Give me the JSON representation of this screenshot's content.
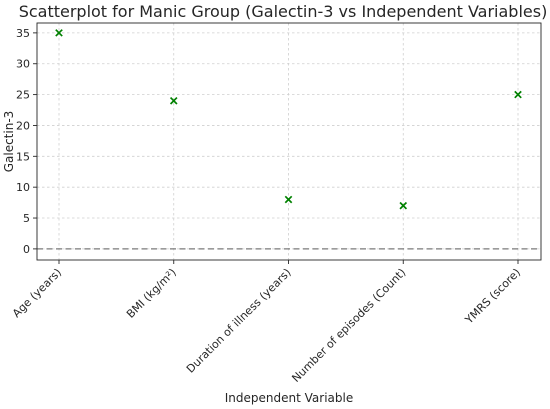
{
  "chart_data": {
    "type": "scatter",
    "title": "Scatterplot for Manic Group (Galectin-3 vs Independent Variables)",
    "xlabel": "Independent Variable",
    "ylabel": "Galectin-3",
    "categories": [
      "Age (years)",
      "BMI (kg/m²)",
      "Duration of illness (years)",
      "Number of episodes (Count)",
      "YMRS (score)"
    ],
    "series": [
      {
        "values": [
          35,
          24,
          8,
          7,
          25
        ],
        "marker": "x",
        "color": "#008000"
      }
    ],
    "ylim": [
      -1.8,
      36.6
    ],
    "yticks": [
      0,
      5,
      10,
      15,
      20,
      25,
      30,
      35
    ],
    "reference_line": {
      "y": 0,
      "style": "dashed",
      "color": "#7f7f7f"
    },
    "grid": true,
    "xtick_rotation": 45
  }
}
